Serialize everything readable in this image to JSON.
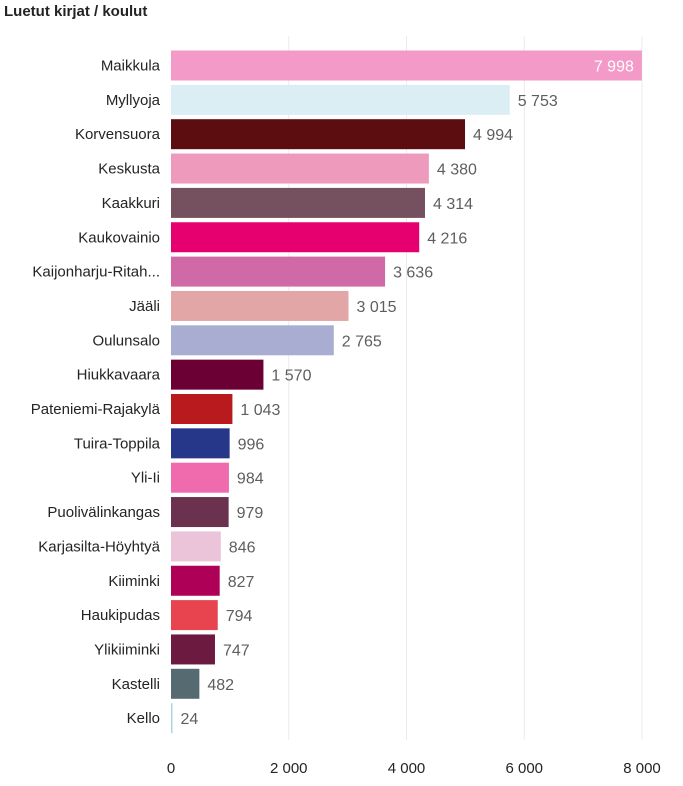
{
  "title": "Luetut kirjat / koulut",
  "chart_data": {
    "type": "bar",
    "orientation": "horizontal",
    "title": "Luetut kirjat / koulut",
    "xlim": [
      0,
      8000
    ],
    "x_ticks": [
      0,
      2000,
      4000,
      6000,
      8000
    ],
    "x_tick_labels": [
      "0",
      "2 000",
      "4 000",
      "6 000",
      "8 000"
    ],
    "grid": true,
    "categories": [
      "Maikkula",
      "Myllyoja",
      "Korvensuora",
      "Keskusta",
      "Kaakkuri",
      "Kaukovainio",
      "Kaijonharju-Ritah...",
      "Jääli",
      "Oulunsalo",
      "Hiukkavaara",
      "Pateniemi-Rajakylä",
      "Tuira-Toppila",
      "Yli-Ii",
      "Puolivälinkangas",
      "Karjasilta-Höyhtyä",
      "Kiiminki",
      "Haukipudas",
      "Ylikiiminki",
      "Kastelli",
      "Kello"
    ],
    "values": [
      7998,
      5753,
      4994,
      4380,
      4314,
      4216,
      3636,
      3015,
      2765,
      1570,
      1043,
      996,
      984,
      979,
      846,
      827,
      794,
      747,
      482,
      24
    ],
    "value_labels": [
      "7 998",
      "5 753",
      "4 994",
      "4 380",
      "4 314",
      "4 216",
      "3 636",
      "3 015",
      "2 765",
      "1 570",
      "1 043",
      "996",
      "984",
      "979",
      "846",
      "827",
      "794",
      "747",
      "482",
      "24"
    ],
    "colors": [
      "#F39AC8",
      "#DAEEF3",
      "#5C0D0F",
      "#EE9ABC",
      "#75505E",
      "#E6006F",
      "#D06AA6",
      "#E3A6A6",
      "#A9ADD1",
      "#6B0034",
      "#B91A1E",
      "#263689",
      "#EF6BAE",
      "#6B3250",
      "#ECC4DA",
      "#AD0056",
      "#E7444F",
      "#6D1A40",
      "#566A72",
      "#A6D6E2"
    ]
  }
}
